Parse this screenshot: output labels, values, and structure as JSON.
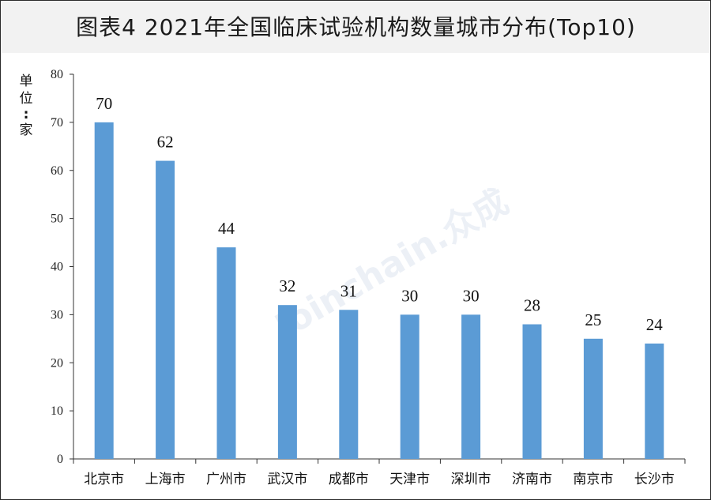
{
  "title": "图表4  2021年全国临床试验机构数量城市分布(Top10)",
  "unit_label": "单位：家",
  "watermark": "Joinchain.众成",
  "colors": {
    "bar": "#5b9bd5",
    "axis": "#333333",
    "title_bg": "#f2f2f2"
  },
  "chart_data": {
    "type": "bar",
    "title": "图表4  2021年全国临床试验机构数量城市分布(Top10)",
    "ylabel": "单位：家",
    "xlabel": "",
    "categories": [
      "北京市",
      "上海市",
      "广州市",
      "武汉市",
      "成都市",
      "天津市",
      "深圳市",
      "济南市",
      "南京市",
      "长沙市"
    ],
    "values": [
      70,
      62,
      44,
      32,
      31,
      30,
      30,
      28,
      25,
      24
    ],
    "ylim": [
      0,
      80
    ],
    "yticks": [
      "0",
      "10",
      "20",
      "30",
      "40",
      "50",
      "60",
      "70",
      "80"
    ],
    "grid": false,
    "legend": "none"
  }
}
